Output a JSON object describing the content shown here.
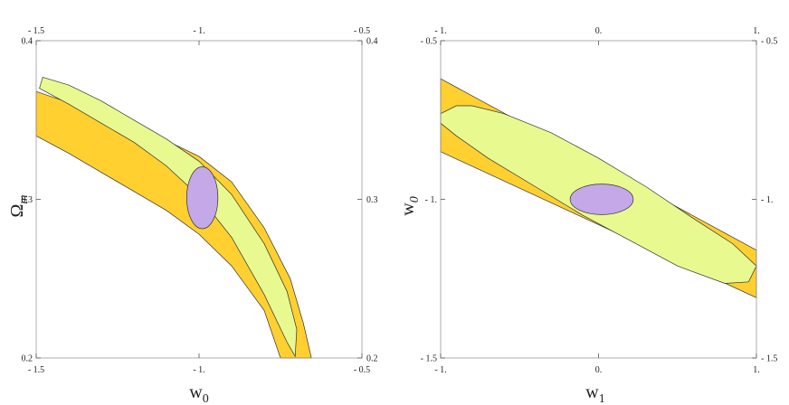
{
  "colors": {
    "orange_fill": "#FFD030",
    "orange_stroke": "#333333",
    "green_fill": "#E8F990",
    "green_stroke": "#333333",
    "purple_fill": "#C5A8E8",
    "purple_stroke": "#333333",
    "frame": "#999999"
  },
  "chart_data": [
    {
      "type": "contour",
      "xlabel": "w",
      "xlabel_sub": "0",
      "ylabel": "Ω",
      "ylabel_sub": "m",
      "xlim": [
        -1.5,
        -0.5
      ],
      "ylim": [
        0.2,
        0.4
      ],
      "xticks": [
        {
          "value": -1.5,
          "label": "- 1.5"
        },
        {
          "value": -1.0,
          "label": "- 1."
        },
        {
          "value": -0.5,
          "label": "- 0.5"
        }
      ],
      "yticks": [
        {
          "value": 0.2,
          "label": "0.2"
        },
        {
          "value": 0.3,
          "label": "0.3"
        },
        {
          "value": 0.4,
          "label": "0.4"
        }
      ],
      "regions": [
        {
          "color": "orange",
          "polygon": [
            [
              -1.5,
              0.34
            ],
            [
              -1.4,
              0.329
            ],
            [
              -1.3,
              0.317
            ],
            [
              -1.2,
              0.305
            ],
            [
              -1.1,
              0.293
            ],
            [
              -1.0,
              0.278
            ],
            [
              -0.9,
              0.258
            ],
            [
              -0.8,
              0.23
            ],
            [
              -0.75,
              0.2
            ],
            [
              -0.655,
              0.2
            ],
            [
              -0.68,
              0.222
            ],
            [
              -0.72,
              0.25
            ],
            [
              -0.8,
              0.282
            ],
            [
              -0.9,
              0.311
            ],
            [
              -1.0,
              0.327
            ],
            [
              -1.1,
              0.337
            ],
            [
              -1.2,
              0.345
            ],
            [
              -1.3,
              0.353
            ],
            [
              -1.4,
              0.361
            ],
            [
              -1.5,
              0.368
            ]
          ]
        },
        {
          "color": "green",
          "polygon": [
            [
              -1.48,
              0.377
            ],
            [
              -1.4,
              0.372
            ],
            [
              -1.3,
              0.362
            ],
            [
              -1.2,
              0.35
            ],
            [
              -1.1,
              0.338
            ],
            [
              -1.0,
              0.324
            ],
            [
              -0.9,
              0.303
            ],
            [
              -0.8,
              0.272
            ],
            [
              -0.73,
              0.242
            ],
            [
              -0.7,
              0.218
            ],
            [
              -0.705,
              0.201
            ],
            [
              -0.73,
              0.21
            ],
            [
              -0.8,
              0.24
            ],
            [
              -0.9,
              0.276
            ],
            [
              -1.0,
              0.302
            ],
            [
              -1.1,
              0.321
            ],
            [
              -1.2,
              0.336
            ],
            [
              -1.3,
              0.348
            ],
            [
              -1.4,
              0.36
            ],
            [
              -1.49,
              0.37
            ]
          ]
        },
        {
          "color": "purple",
          "ellipse": {
            "cx": -0.99,
            "cy": 0.301,
            "rx": 0.048,
            "ry": 0.0195
          }
        }
      ]
    },
    {
      "type": "contour",
      "xlabel": "w",
      "xlabel_sub": "1",
      "ylabel": "w",
      "ylabel_sub": "0",
      "xlim": [
        -1.0,
        1.0
      ],
      "ylim": [
        -1.5,
        -0.5
      ],
      "xticks": [
        {
          "value": -1.0,
          "label": "- 1."
        },
        {
          "value": 0.0,
          "label": "0."
        },
        {
          "value": 1.0,
          "label": "1."
        }
      ],
      "yticks": [
        {
          "value": -1.5,
          "label": "- 1.5"
        },
        {
          "value": -1.0,
          "label": "- 1."
        },
        {
          "value": -0.5,
          "label": "- 0.5"
        }
      ],
      "regions": [
        {
          "color": "orange",
          "polygon": [
            [
              -1.0,
              -0.62
            ],
            [
              1.0,
              -1.16
            ],
            [
              1.0,
              -1.31
            ],
            [
              -1.0,
              -0.85
            ]
          ]
        },
        {
          "color": "green",
          "polygon": [
            [
              -1.0,
              -0.73
            ],
            [
              -0.9,
              -0.705
            ],
            [
              -0.8,
              -0.705
            ],
            [
              -0.6,
              -0.73
            ],
            [
              -0.3,
              -0.79
            ],
            [
              0.0,
              -0.87
            ],
            [
              0.3,
              -0.96
            ],
            [
              0.6,
              -1.06
            ],
            [
              0.85,
              -1.14
            ],
            [
              1.0,
              -1.21
            ],
            [
              0.95,
              -1.26
            ],
            [
              0.8,
              -1.265
            ],
            [
              0.5,
              -1.21
            ],
            [
              0.2,
              -1.13
            ],
            [
              -0.1,
              -1.05
            ],
            [
              -0.4,
              -0.96
            ],
            [
              -0.7,
              -0.87
            ],
            [
              -0.9,
              -0.8
            ],
            [
              -1.0,
              -0.76
            ]
          ]
        },
        {
          "color": "purple",
          "ellipse": {
            "cx": 0.02,
            "cy": -1.0,
            "rx": 0.2,
            "ry": 0.048
          }
        }
      ]
    }
  ]
}
